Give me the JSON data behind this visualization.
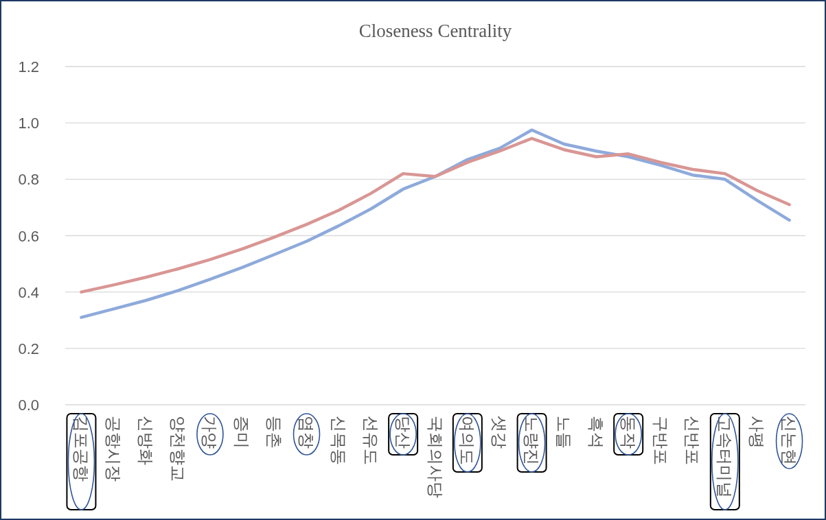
{
  "chart_data": {
    "type": "line",
    "title": "Closeness Centrality",
    "categories": [
      "김포공항",
      "공항시장",
      "신방화",
      "양천향교",
      "가양",
      "증미",
      "등촌",
      "염창",
      "신목동",
      "선유도",
      "당산",
      "국회의사당",
      "여의도",
      "샛강",
      "노량진",
      "노들",
      "흑석",
      "동작",
      "구반포",
      "신반포",
      "고속터미널",
      "사평",
      "신논현"
    ],
    "series": [
      {
        "color": "#8eaadb",
        "values": [
          0.31,
          0.34,
          0.37,
          0.405,
          0.445,
          0.487,
          0.533,
          0.58,
          0.635,
          0.695,
          0.765,
          0.81,
          0.87,
          0.91,
          0.975,
          0.925,
          0.9,
          0.88,
          0.85,
          0.815,
          0.8,
          0.725,
          0.655
        ]
      },
      {
        "color": "#d99694",
        "values": [
          0.4,
          0.425,
          0.452,
          0.482,
          0.515,
          0.553,
          0.595,
          0.64,
          0.69,
          0.75,
          0.82,
          0.81,
          0.86,
          0.9,
          0.945,
          0.905,
          0.88,
          0.89,
          0.86,
          0.835,
          0.82,
          0.76,
          0.71
        ]
      }
    ],
    "ylim": [
      0,
      1.2
    ],
    "yticks": [
      {
        "value": 0,
        "label": "0.0"
      },
      {
        "value": 0.2,
        "label": "0.2"
      },
      {
        "value": 0.4,
        "label": "0.4"
      },
      {
        "value": 0.6,
        "label": "0.6"
      },
      {
        "value": 0.8,
        "label": "0.8"
      },
      {
        "value": 1,
        "label": "1.0"
      },
      {
        "value": 1.2,
        "label": "1.2"
      }
    ],
    "grid": "y",
    "marker": "none",
    "line_style": "solid"
  }
}
